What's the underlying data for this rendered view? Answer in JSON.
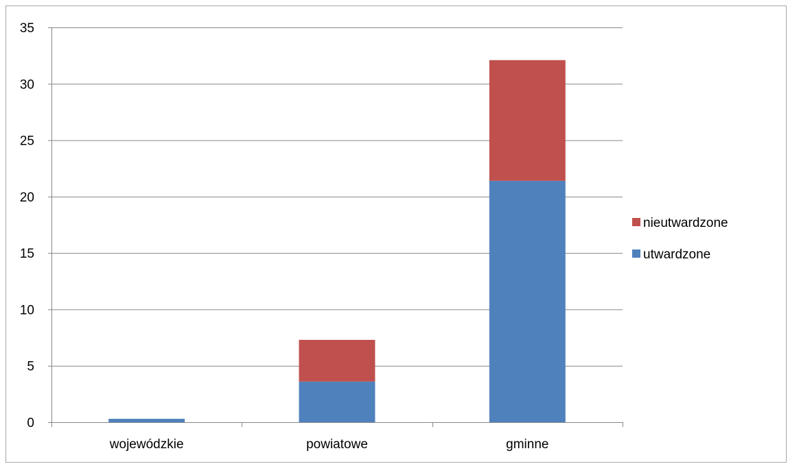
{
  "chart_data": {
    "type": "bar",
    "stacked": true,
    "title": "",
    "xlabel": "",
    "ylabel": "",
    "categories": [
      "wojewódzkie",
      "powiatowe",
      "gminne"
    ],
    "series": [
      {
        "name": "utwardzone",
        "color": "#4f81bd",
        "values": [
          0.3,
          3.6,
          21.4
        ]
      },
      {
        "name": "nieutwardzone",
        "color": "#c0504d",
        "values": [
          0,
          3.7,
          10.7
        ]
      }
    ],
    "ylim": [
      0,
      35
    ],
    "yticks": [
      0,
      5,
      10,
      15,
      20,
      25,
      30,
      35
    ],
    "ytick_labels": [
      "0",
      "5",
      "10",
      "15",
      "20",
      "25",
      "30",
      "35"
    ],
    "grid": true,
    "legend": {
      "position": "right",
      "entries": [
        "nieutwardzone",
        "utwardzone"
      ]
    }
  }
}
